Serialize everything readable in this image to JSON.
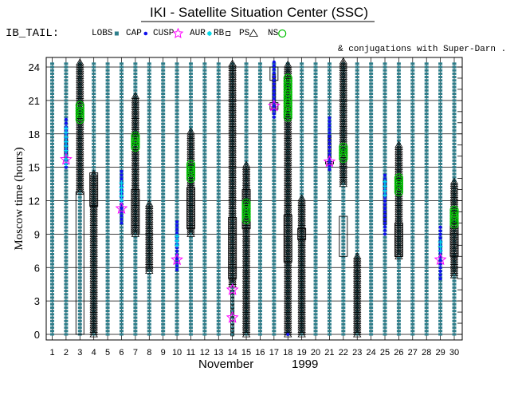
{
  "title": "IKI - Satellite Situation Center (SSC)",
  "tail_label": "IB_TAIL:",
  "legend": [
    {
      "label": "LOBS",
      "symbol": "lobs",
      "color": "#2e7f8c"
    },
    {
      "label": "CAP",
      "symbol": "cap",
      "color": "#1010ee"
    },
    {
      "label": "CUSP",
      "symbol": "cusp",
      "color": "#ff00ff"
    },
    {
      "label": "AUR",
      "symbol": "aur",
      "color": "#00d8e8"
    },
    {
      "label": "RB",
      "symbol": "rb",
      "color": "#000000"
    },
    {
      "label": "PS",
      "symbol": "ps",
      "color": "#000000"
    },
    {
      "label": "NS",
      "symbol": "ns",
      "color": "#00c000"
    }
  ],
  "note": "& conjugations with Super-Darn .",
  "colors": {
    "lobs": "#2e7f8c",
    "cap": "#1010ee",
    "cusp": "#ff00ff",
    "aur": "#00d8e8",
    "ns": "#00c000",
    "grid": "#000000"
  },
  "chart_data": {
    "type": "scatter",
    "title": "IKI - Satellite Situation Center (SSC)",
    "xlabel": "November",
    "xlabel_year": "1999",
    "ylabel": "Moscow time (hours)",
    "xlim": [
      1,
      30
    ],
    "ylim": [
      0,
      24
    ],
    "x_ticks": [
      "1",
      "2",
      "3",
      "4",
      "5",
      "6",
      "7",
      "8",
      "9",
      "10",
      "11",
      "12",
      "13",
      "14",
      "15",
      "16",
      "17",
      "18",
      "19",
      "20",
      "21",
      "22",
      "23",
      "24",
      "25",
      "26",
      "27",
      "28",
      "29",
      "30"
    ],
    "y_ticks": [
      "0",
      "3",
      "6",
      "9",
      "12",
      "15",
      "18",
      "21",
      "24"
    ],
    "lobs_days": [
      1,
      2,
      3,
      4,
      5,
      6,
      7,
      8,
      9,
      10,
      11,
      12,
      13,
      14,
      15,
      16,
      17,
      18,
      19,
      20,
      21,
      22,
      23,
      24,
      25,
      26,
      27,
      28,
      29,
      30
    ],
    "regions": [
      {
        "day": 2,
        "cap": [
          15,
          19.5
        ],
        "aur": [
          15.3,
          18.5
        ],
        "rb": [
          16,
          18
        ],
        "cusp": [
          15.7,
          15.7
        ]
      },
      {
        "day": 3,
        "ns": [
          19.3,
          20.6
        ],
        "ps": [
          12.8,
          24.5
        ],
        "ps_box": [
          0,
          12.8
        ]
      },
      {
        "day": 4,
        "ps": [
          0,
          14.5
        ],
        "ps_box": [
          11.5,
          14.5
        ]
      },
      {
        "day": 6,
        "cap": [
          10,
          14.8
        ],
        "aur": [
          12,
          13.8
        ],
        "cusp": [
          11.3,
          11.3
        ]
      },
      {
        "day": 7,
        "ps": [
          9,
          21.5
        ],
        "ns": [
          16.8,
          18
        ],
        "ps_box": [
          9,
          13
        ]
      },
      {
        "day": 8,
        "ps": [
          5.7,
          11.8
        ]
      },
      {
        "day": 10,
        "cap": [
          5.8,
          10.2
        ],
        "aur": [
          8,
          9
        ],
        "cusp": [
          6.7,
          6.7
        ]
      },
      {
        "day": 11,
        "ps": [
          9,
          18.3
        ],
        "ns": [
          14,
          15.3
        ],
        "ps_box": [
          9.5,
          13.2
        ]
      },
      {
        "day": 14,
        "ps": [
          4.5,
          24.3
        ],
        "cusp": [
          1.5,
          4
        ],
        "ps_box": [
          5,
          10.5
        ],
        "rb": [
          0,
          4
        ]
      },
      {
        "day": 15,
        "ps": [
          0,
          15.2
        ],
        "ns": [
          10.3,
          12
        ],
        "ps_box": [
          9.5,
          13
        ]
      },
      {
        "day": 17,
        "cap": [
          19.5,
          24.5
        ],
        "rb": [
          20,
          23.5
        ],
        "cusp": [
          20.5,
          20.5
        ],
        "ps_box": [
          20.2,
          20.8
        ],
        "ps_box2": [
          22.8,
          24
        ]
      },
      {
        "day": 18,
        "ps": [
          0,
          24.3
        ],
        "ns": [
          19.5,
          23.2
        ],
        "ps_box": [
          6.5,
          10.7
        ],
        "cap": [
          0,
          0.3
        ]
      },
      {
        "day": 19,
        "ps": [
          0,
          12.2
        ],
        "ps_box": [
          8.5,
          9.5
        ]
      },
      {
        "day": 21,
        "cap": [
          14.8,
          19.5
        ],
        "rb": [
          16,
          18
        ],
        "cusp": [
          15.5,
          15.5
        ],
        "ps_box": [
          15.3,
          15.5
        ]
      },
      {
        "day": 22,
        "ps": [
          13.5,
          24.5
        ],
        "ns": [
          15.8,
          17
        ],
        "ps_box": [
          7,
          10.6
        ]
      },
      {
        "day": 23,
        "ps": [
          0,
          7.2
        ]
      },
      {
        "day": 25,
        "cap": [
          9,
          14.5
        ],
        "aur": [
          12.5,
          13.8
        ],
        "rb": [
          10,
          14
        ]
      },
      {
        "day": 26,
        "ps": [
          7,
          17
        ],
        "ns": [
          12.8,
          14.2
        ],
        "ps_box": [
          7,
          10
        ]
      },
      {
        "day": 29,
        "cap": [
          5,
          9.8
        ],
        "aur": [
          7.5,
          8.5
        ],
        "cusp": [
          6.7,
          6.7
        ]
      },
      {
        "day": 30,
        "ps": [
          5.3,
          13.8
        ],
        "ns": [
          9.9,
          11.2
        ],
        "ps_box": [
          7,
          10
        ]
      }
    ]
  }
}
